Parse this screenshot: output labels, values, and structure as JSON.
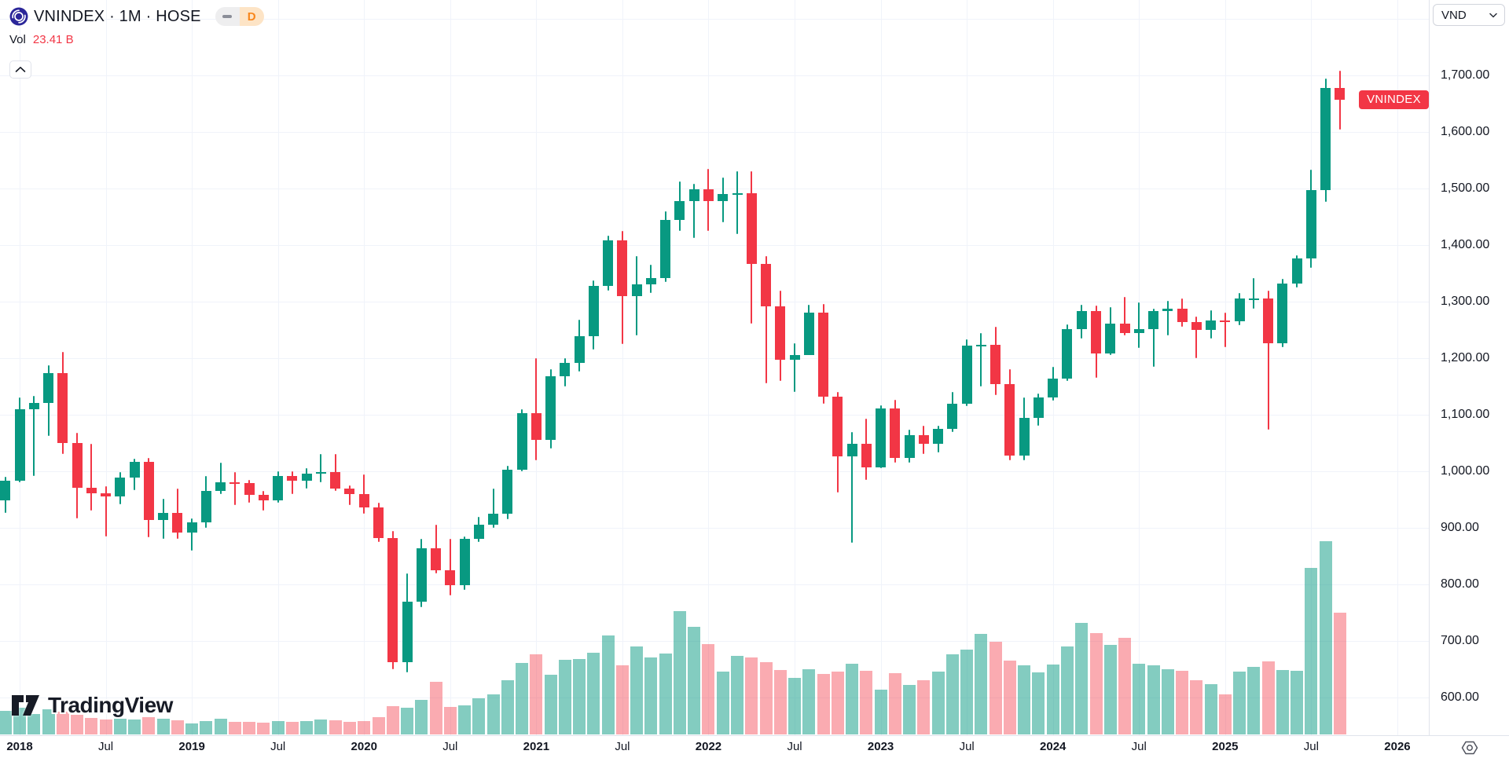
{
  "header": {
    "symbol_title": "VNINDEX · 1M · HOSE",
    "interval_badge": {
      "minus_icon": "dash",
      "label": "D"
    },
    "vol_label": "Vol",
    "vol_value": "23.41 B"
  },
  "price_axis": {
    "currency": "VND",
    "series_tag": "VNINDEX",
    "labels": [
      {
        "text": "1,700.00",
        "price": 1700
      },
      {
        "text": "1,600.00",
        "price": 1600
      },
      {
        "text": "1,500.00",
        "price": 1500
      },
      {
        "text": "1,400.00",
        "price": 1400
      },
      {
        "text": "1,300.00",
        "price": 1300
      },
      {
        "text": "1,200.00",
        "price": 1200
      },
      {
        "text": "1,100.00",
        "price": 1100
      },
      {
        "text": "1,000.00",
        "price": 1000
      },
      {
        "text": "900.00",
        "price": 900
      },
      {
        "text": "800.00",
        "price": 800
      },
      {
        "text": "700.00",
        "price": 700
      },
      {
        "text": "600.00",
        "price": 600
      }
    ]
  },
  "time_axis": {
    "labels": [
      {
        "text": "2018",
        "month_index": 1,
        "bold": true
      },
      {
        "text": "Jul",
        "month_index": 7,
        "bold": false
      },
      {
        "text": "2019",
        "month_index": 13,
        "bold": true
      },
      {
        "text": "Jul",
        "month_index": 19,
        "bold": false
      },
      {
        "text": "2020",
        "month_index": 25,
        "bold": true
      },
      {
        "text": "Jul",
        "month_index": 31,
        "bold": false
      },
      {
        "text": "2021",
        "month_index": 37,
        "bold": true
      },
      {
        "text": "Jul",
        "month_index": 43,
        "bold": false
      },
      {
        "text": "2022",
        "month_index": 49,
        "bold": true
      },
      {
        "text": "Jul",
        "month_index": 55,
        "bold": false
      },
      {
        "text": "2023",
        "month_index": 61,
        "bold": true
      },
      {
        "text": "Jul",
        "month_index": 67,
        "bold": false
      },
      {
        "text": "2024",
        "month_index": 73,
        "bold": true
      },
      {
        "text": "Jul",
        "month_index": 79,
        "bold": false
      },
      {
        "text": "2025",
        "month_index": 85,
        "bold": true
      },
      {
        "text": "Jul",
        "month_index": 91,
        "bold": false
      },
      {
        "text": "2026",
        "month_index": 97,
        "bold": true
      }
    ]
  },
  "watermark": {
    "text": "TradingView"
  },
  "colors": {
    "up": "#089981",
    "down": "#f23645",
    "volume_up": "rgba(8,153,129,0.5)",
    "volume_down": "rgba(242,54,69,0.42)",
    "grid": "#f0f3fa",
    "axis_border": "#e0e3eb",
    "text": "#131722",
    "tag_bg": "#f23645",
    "badge_orange": "#f8861b",
    "logo_navy": "#2b2699"
  },
  "chart_data": {
    "type": "candlestick_with_volume",
    "symbol": "VNINDEX",
    "interval": "1M",
    "exchange": "HOSE",
    "title": "VNINDEX · 1M · HOSE",
    "grid_prices": [
      1800,
      1700,
      1600,
      1500,
      1400,
      1300,
      1200,
      1100,
      1000,
      900,
      800,
      700,
      600
    ],
    "visible_price_range": [
      533,
      1833
    ],
    "last_close": 1657,
    "current_volume_label": "23.41 B",
    "months": [
      "2017-12",
      "2018-01",
      "2018-02",
      "2018-03",
      "2018-04",
      "2018-05",
      "2018-06",
      "2018-07",
      "2018-08",
      "2018-09",
      "2018-10",
      "2018-11",
      "2018-12",
      "2019-01",
      "2019-02",
      "2019-03",
      "2019-04",
      "2019-05",
      "2019-06",
      "2019-07",
      "2019-08",
      "2019-09",
      "2019-10",
      "2019-11",
      "2019-12",
      "2020-01",
      "2020-02",
      "2020-03",
      "2020-04",
      "2020-05",
      "2020-06",
      "2020-07",
      "2020-08",
      "2020-09",
      "2020-10",
      "2020-11",
      "2020-12",
      "2021-01",
      "2021-02",
      "2021-03",
      "2021-04",
      "2021-05",
      "2021-06",
      "2021-07",
      "2021-08",
      "2021-09",
      "2021-10",
      "2021-11",
      "2021-12",
      "2022-01",
      "2022-02",
      "2022-03",
      "2022-04",
      "2022-05",
      "2022-06",
      "2022-07",
      "2022-08",
      "2022-09",
      "2022-10",
      "2022-11",
      "2022-12",
      "2023-01",
      "2023-02",
      "2023-03",
      "2023-04",
      "2023-05",
      "2023-06",
      "2023-07",
      "2023-08",
      "2023-09",
      "2023-10",
      "2023-11",
      "2023-12",
      "2024-01",
      "2024-02",
      "2024-03",
      "2024-04",
      "2024-05",
      "2024-06",
      "2024-07",
      "2024-08",
      "2024-09",
      "2024-10",
      "2024-11",
      "2024-12",
      "2025-01",
      "2025-02",
      "2025-03",
      "2025-04",
      "2025-05",
      "2025-06",
      "2025-07",
      "2025-08",
      "2025-09"
    ],
    "candles_ohlc": [
      [
        949,
        990,
        927,
        984
      ],
      [
        984,
        1130,
        980,
        1110
      ],
      [
        1110,
        1133,
        991,
        1121
      ],
      [
        1121,
        1187,
        1062,
        1174
      ],
      [
        1174,
        1211,
        1031,
        1050
      ],
      [
        1050,
        1068,
        916,
        971
      ],
      [
        971,
        1048,
        931,
        961
      ],
      [
        961,
        973,
        885,
        956
      ],
      [
        956,
        999,
        941,
        989
      ],
      [
        989,
        1022,
        967,
        1017
      ],
      [
        1017,
        1024,
        883,
        914
      ],
      [
        914,
        952,
        880,
        926
      ],
      [
        926,
        970,
        880,
        892
      ],
      [
        892,
        917,
        860,
        910
      ],
      [
        910,
        992,
        900,
        965
      ],
      [
        965,
        1015,
        960,
        980
      ],
      [
        980,
        999,
        940,
        979
      ],
      [
        979,
        985,
        945,
        959
      ],
      [
        959,
        965,
        930,
        949
      ],
      [
        949,
        1000,
        945,
        991
      ],
      [
        991,
        1000,
        960,
        984
      ],
      [
        984,
        1005,
        970,
        996
      ],
      [
        996,
        1030,
        980,
        998
      ],
      [
        998,
        1030,
        965,
        970
      ],
      [
        970,
        975,
        940,
        960
      ],
      [
        960,
        995,
        925,
        936
      ],
      [
        936,
        945,
        875,
        882
      ],
      [
        882,
        895,
        650,
        662
      ],
      [
        662,
        820,
        645,
        769
      ],
      [
        769,
        880,
        760,
        864
      ],
      [
        864,
        905,
        820,
        825
      ],
      [
        825,
        880,
        780,
        798
      ],
      [
        798,
        885,
        790,
        881
      ],
      [
        881,
        920,
        875,
        905
      ],
      [
        905,
        970,
        900,
        925
      ],
      [
        925,
        1010,
        915,
        1003
      ],
      [
        1003,
        1110,
        1000,
        1103
      ],
      [
        1103,
        1200,
        1020,
        1056
      ],
      [
        1056,
        1180,
        1040,
        1168
      ],
      [
        1168,
        1200,
        1150,
        1191
      ],
      [
        1191,
        1268,
        1177,
        1239
      ],
      [
        1239,
        1337,
        1215,
        1328
      ],
      [
        1328,
        1417,
        1319,
        1408
      ],
      [
        1408,
        1425,
        1225,
        1310
      ],
      [
        1310,
        1380,
        1240,
        1331
      ],
      [
        1331,
        1365,
        1315,
        1342
      ],
      [
        1342,
        1460,
        1335,
        1444
      ],
      [
        1444,
        1512,
        1425,
        1478
      ],
      [
        1478,
        1508,
        1413,
        1498
      ],
      [
        1498,
        1535,
        1425,
        1478
      ],
      [
        1478,
        1520,
        1440,
        1490
      ],
      [
        1490,
        1530,
        1420,
        1492
      ],
      [
        1492,
        1530,
        1261,
        1366
      ],
      [
        1366,
        1380,
        1156,
        1292
      ],
      [
        1292,
        1320,
        1160,
        1197
      ],
      [
        1197,
        1226,
        1140,
        1206
      ],
      [
        1206,
        1295,
        1205,
        1280
      ],
      [
        1280,
        1296,
        1120,
        1132
      ],
      [
        1132,
        1140,
        962,
        1027
      ],
      [
        1027,
        1069,
        873,
        1048
      ],
      [
        1048,
        1093,
        985,
        1007
      ],
      [
        1007,
        1117,
        1005,
        1111
      ],
      [
        1111,
        1127,
        1015,
        1024
      ],
      [
        1024,
        1073,
        1015,
        1064
      ],
      [
        1064,
        1080,
        1030,
        1049
      ],
      [
        1049,
        1080,
        1033,
        1075
      ],
      [
        1075,
        1140,
        1070,
        1120
      ],
      [
        1120,
        1234,
        1115,
        1222
      ],
      [
        1222,
        1245,
        1150,
        1224
      ],
      [
        1224,
        1255,
        1135,
        1154
      ],
      [
        1154,
        1180,
        1020,
        1028
      ],
      [
        1028,
        1130,
        1020,
        1094
      ],
      [
        1094,
        1137,
        1080,
        1130
      ],
      [
        1130,
        1185,
        1125,
        1164
      ],
      [
        1164,
        1260,
        1160,
        1252
      ],
      [
        1252,
        1295,
        1235,
        1284
      ],
      [
        1284,
        1293,
        1165,
        1209
      ],
      [
        1209,
        1290,
        1205,
        1261
      ],
      [
        1261,
        1308,
        1240,
        1245
      ],
      [
        1245,
        1298,
        1218,
        1251
      ],
      [
        1251,
        1288,
        1185,
        1283
      ],
      [
        1283,
        1302,
        1240,
        1287
      ],
      [
        1287,
        1305,
        1255,
        1264
      ],
      [
        1264,
        1274,
        1200,
        1250
      ],
      [
        1250,
        1285,
        1235,
        1266
      ],
      [
        1266,
        1280,
        1220,
        1265
      ],
      [
        1265,
        1315,
        1258,
        1305
      ],
      [
        1305,
        1342,
        1288,
        1306
      ],
      [
        1306,
        1320,
        1074,
        1226
      ],
      [
        1226,
        1340,
        1220,
        1332
      ],
      [
        1332,
        1382,
        1325,
        1376
      ],
      [
        1376,
        1534,
        1360,
        1497
      ],
      [
        1497,
        1694,
        1476,
        1678
      ],
      [
        1678,
        1708,
        1604,
        1657
      ]
    ],
    "volumes_b": [
      4.5,
      5.2,
      3.9,
      4.8,
      4.4,
      3.8,
      3.2,
      2.9,
      3.1,
      2.9,
      3.4,
      3.0,
      2.8,
      2.1,
      2.6,
      3.1,
      2.5,
      2.4,
      2.3,
      2.6,
      2.4,
      2.6,
      2.9,
      2.7,
      2.5,
      2.6,
      3.3,
      5.4,
      5.1,
      6.6,
      10.2,
      5.3,
      5.6,
      6.9,
      7.8,
      10.4,
      13.8,
      15.5,
      11.5,
      14.4,
      14.6,
      15.8,
      19.1,
      13.4,
      17.0,
      14.9,
      15.6,
      23.8,
      20.8,
      17.5,
      12.1,
      15.2,
      14.8,
      13.9,
      12.4,
      10.9,
      12.6,
      11.6,
      12.1,
      13.6,
      12.2,
      8.7,
      11.8,
      9.5,
      10.4,
      12.1,
      15.5,
      16.3,
      19.4,
      17.9,
      14.2,
      13.3,
      12.0,
      13.5,
      17.0,
      21.5,
      19.5,
      17.2,
      18.6,
      13.7,
      13.3,
      12.6,
      12.3,
      10.5,
      9.7,
      7.7,
      12.1,
      13.1,
      14.1,
      12.4,
      12.2,
      32.1,
      37.2,
      23.41
    ]
  }
}
